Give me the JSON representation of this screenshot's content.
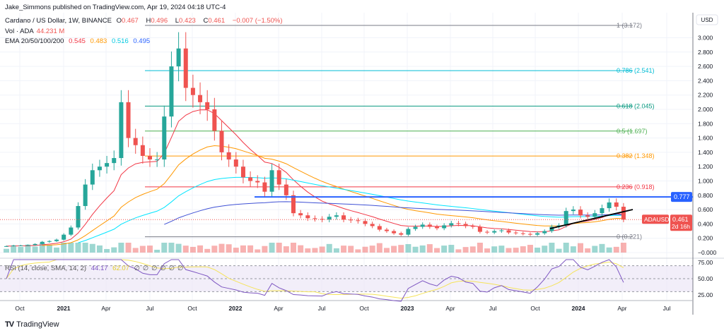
{
  "publisher_line": "Jake_Simmons published on TradingView.com, Apr 19, 2024 04:18 UTC-4",
  "legend": {
    "symbol": "Cardano / US Dollar, 1W, BINANCE",
    "o_label": "O",
    "o": "0.467",
    "h_label": "H",
    "h": "0.496",
    "l_label": "L",
    "l": "0.423",
    "c_label": "C",
    "c": "0.461",
    "change": "−0.007 (−1.50%)",
    "vol_label": "Vol · ADA",
    "vol": "44.231 M",
    "ema_label": "EMA 20/50/100/200",
    "ema_values": [
      "0.545",
      "0.483",
      "0.516",
      "0.495"
    ],
    "rsi_label": "RSI (14, close, SMA, 14, 2)",
    "rsi_value": "44.17",
    "rsi_sma": "62.07",
    "rsi_na": [
      "∅",
      "∅",
      "∅",
      "∅",
      "∅",
      "∅"
    ]
  },
  "brand": "TradingView",
  "colors": {
    "up": "#26a69a",
    "down": "#ef5350",
    "ema20": "#f23645",
    "ema50": "#ff9800",
    "ema100": "#00e5ff",
    "ema200": "#3f51d5",
    "rsi": "#7e57c2",
    "rsi_sma": "#f5e35a",
    "resistance": "#2962ff"
  },
  "chart_data": {
    "type": "candlestick",
    "title": "Cardano / US Dollar, 1W, BINANCE",
    "currency_label": "USD",
    "x_ticks": [
      "Oct",
      "2021",
      "Apr",
      "Jul",
      "Oct",
      "2022",
      "Apr",
      "Jul",
      "Oct",
      "2023",
      "Apr",
      "Jul",
      "Oct",
      "2024",
      "Apr",
      "Jul"
    ],
    "y_ticks": [
      "3.000",
      "2.800",
      "2.600",
      "2.400",
      "2.200",
      "2.000",
      "1.800",
      "1.600",
      "1.400",
      "1.200",
      "1.000",
      "0.800",
      "0.600",
      "0.400",
      "0.200",
      "−0.000"
    ],
    "ylim": [
      0,
      3.2
    ],
    "closes": [
      0.09,
      0.1,
      0.1,
      0.105,
      0.12,
      0.15,
      0.16,
      0.18,
      0.25,
      0.35,
      0.65,
      0.95,
      1.15,
      1.2,
      1.25,
      1.32,
      2.1,
      1.6,
      1.5,
      1.35,
      1.3,
      1.3,
      1.9,
      2.6,
      2.85,
      2.3,
      2.2,
      2.1,
      2.0,
      1.7,
      1.4,
      1.3,
      1.2,
      1.05,
      1.0,
      0.98,
      0.85,
      1.15,
      0.95,
      0.8,
      0.55,
      0.52,
      0.48,
      0.47,
      0.46,
      0.5,
      0.52,
      0.46,
      0.45,
      0.44,
      0.4,
      0.37,
      0.32,
      0.3,
      0.27,
      0.25,
      0.33,
      0.36,
      0.39,
      0.36,
      0.34,
      0.38,
      0.41,
      0.4,
      0.37,
      0.36,
      0.29,
      0.28,
      0.3,
      0.31,
      0.28,
      0.27,
      0.26,
      0.25,
      0.27,
      0.3,
      0.36,
      0.38,
      0.58,
      0.6,
      0.52,
      0.5,
      0.55,
      0.62,
      0.7,
      0.64,
      0.461
    ],
    "fib_levels": [
      {
        "label": "1 (3.172)",
        "value": 3.172,
        "color": "#787b86"
      },
      {
        "label": "0.786 (2.541)",
        "value": 2.541,
        "color": "#00bcd4"
      },
      {
        "label": "0.618 (2.045)",
        "value": 2.045,
        "color": "#089981"
      },
      {
        "label": "0.5 (1.697)",
        "value": 1.697,
        "color": "#4caf50"
      },
      {
        "label": "0.382 (1.348)",
        "value": 1.348,
        "color": "#ff9800"
      },
      {
        "label": "0.236 (0.918)",
        "value": 0.918,
        "color": "#f23645"
      },
      {
        "label": "0 (0.221)",
        "value": 0.221,
        "color": "#787b86"
      }
    ],
    "resistance": {
      "label": "0.777",
      "value": 0.777
    },
    "last_price": {
      "symbol": "ADAUSD",
      "value": "0.461",
      "countdown": "2d 16h"
    },
    "rsi_ticks": [
      "75.00",
      "50.00",
      "25.00"
    ]
  }
}
